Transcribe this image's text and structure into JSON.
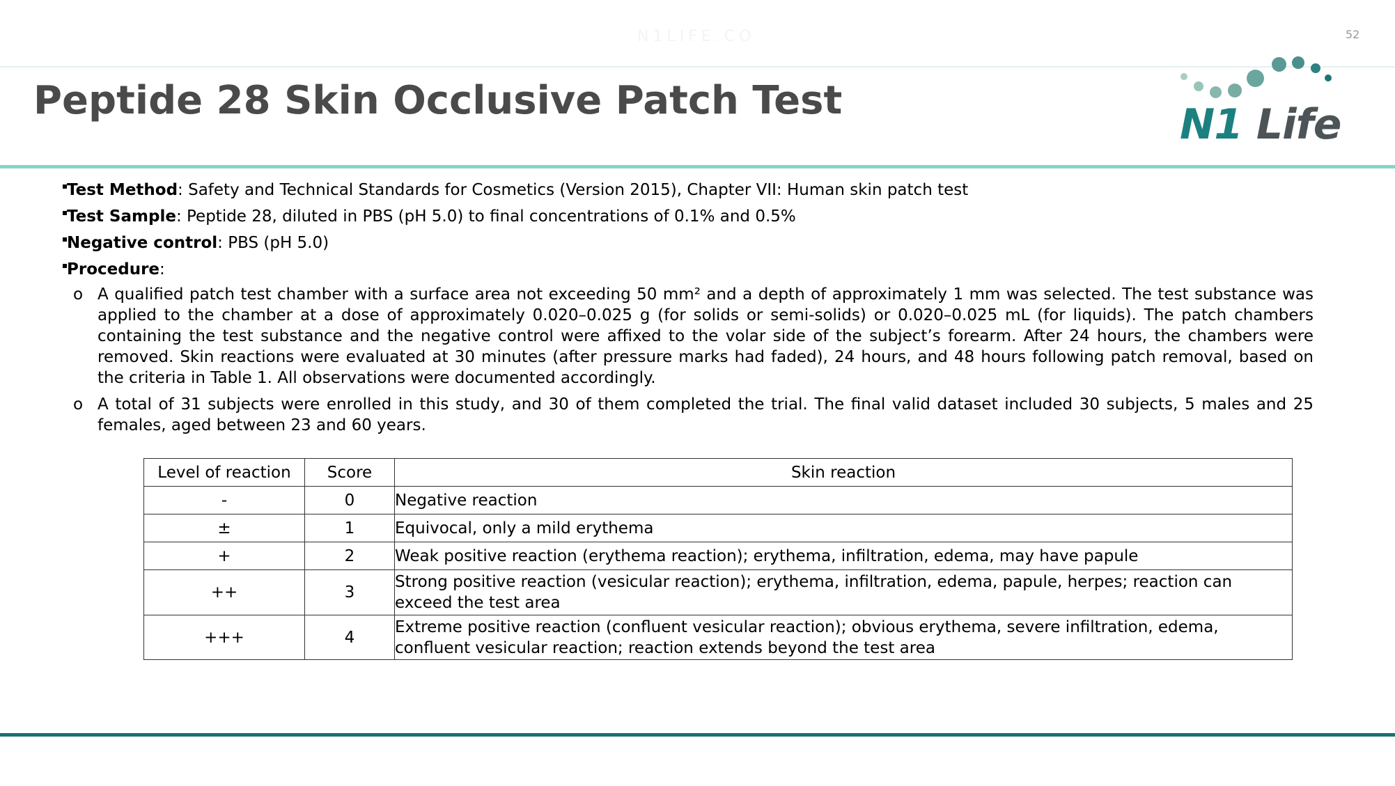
{
  "header": {
    "watermark": "N1LIFE.CO",
    "page_number": "52",
    "title": "Peptide 28 Skin Occlusive Patch Test"
  },
  "logo": {
    "text_n1": "N1",
    "text_life": "Life",
    "colors": {
      "n1": "#1c8080",
      "life": "#4d5457"
    }
  },
  "bullets": [
    {
      "label": "Test Method",
      "text": ": Safety and Technical Standards for Cosmetics (Version 2015), Chapter VII: Human skin patch test"
    },
    {
      "label": "Test Sample",
      "text": ": Peptide 28, diluted in PBS (pH 5.0) to final concentrations of 0.1% and 0.5%"
    },
    {
      "label": "Negative control",
      "text": ": PBS (pH 5.0)"
    },
    {
      "label": "Procedure",
      "text": ":"
    }
  ],
  "procedure": [
    {
      "marker": "o",
      "text": "A qualified patch test chamber with a surface area not exceeding 50 mm² and a depth of approximately 1 mm was selected. The test substance was applied to the chamber at a dose of approximately 0.020–0.025 g (for solids or semi-solids) or 0.020–0.025 mL (for liquids). The patch chambers containing the test substance and the negative control were affixed to the volar side of the subject’s forearm. After 24 hours, the chambers were removed. Skin reactions were evaluated at 30 minutes (after pressure marks had faded), 24 hours, and 48 hours following patch removal, based on the criteria in Table 1. All observations were documented accordingly."
    },
    {
      "marker": "o",
      "text": "A total of 31 subjects were enrolled in this study, and 30 of them completed the trial. The final valid dataset included 30 subjects, 5 males and 25 females, aged between 23 and 60 years."
    }
  ],
  "table": {
    "headers": [
      "Level of reaction",
      "Score",
      "Skin reaction"
    ],
    "rows": [
      [
        "-",
        "0",
        "Negative reaction"
      ],
      [
        "±",
        "1",
        "Equivocal, only a mild erythema"
      ],
      [
        "+",
        "2",
        "Weak positive reaction (erythema reaction); erythema, infiltration, edema, may have papule"
      ],
      [
        "++",
        "3",
        "Strong positive reaction (vesicular reaction); erythema, infiltration, edema, papule, herpes; reaction can exceed the test area"
      ],
      [
        "+++",
        "4",
        "Extreme positive reaction (confluent vesicular reaction); obvious erythema, severe infiltration, edema, confluent vesicular reaction; reaction extends beyond the test area"
      ]
    ]
  },
  "colors": {
    "accent_line": "#86d6c6",
    "bottom_line": "#1a7070",
    "title": "#4a4a4a"
  }
}
